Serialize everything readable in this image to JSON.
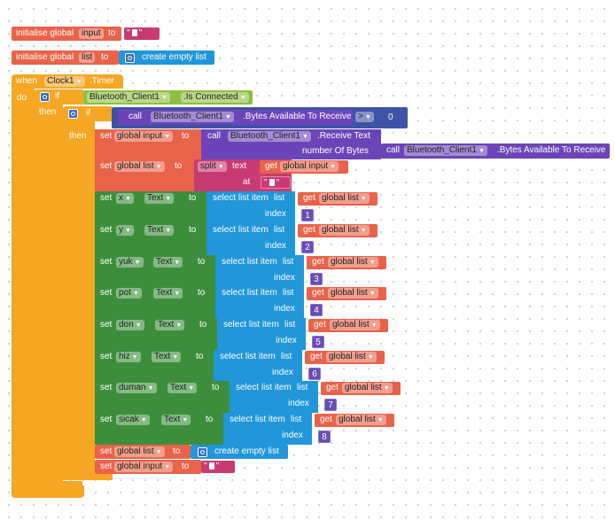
{
  "colors": {
    "variable": "#e8634a",
    "control": "#f5a622",
    "component_event": "#f5a622",
    "component_property_green": "#3d8e3c",
    "bluetooth_green": "#8dbf3f",
    "list_blue": "#2196d9",
    "method_purple": "#6d44b8",
    "text_pink": "#c83b72",
    "math_blue": "#3c53a6"
  },
  "globals": [
    {
      "label": "initialise global",
      "name": "input",
      "to": "to",
      "value_quote": "\""
    },
    {
      "label": "initialise global",
      "name": "list",
      "to": "to",
      "value_label": "create empty list"
    }
  ],
  "event": {
    "when": "when",
    "component": "Clock1",
    "event_name": ".Timer",
    "do": "do"
  },
  "if1": {
    "if": "if",
    "then": "then",
    "component": "Bluetooth_Client1",
    "property": ".Is Connected"
  },
  "if2": {
    "if": "if",
    "then": "then",
    "call": "call",
    "component": "Bluetooth_Client1",
    "method": ".Bytes Available To Receive",
    "op": ">",
    "value": "0"
  },
  "set_input": {
    "set": "set",
    "var": "global input",
    "to": "to",
    "call": "call",
    "component": "Bluetooth_Client1",
    "method": ".Receive Text",
    "arg_label": "number Of Bytes",
    "call2": "call",
    "component2": "Bluetooth_Client1",
    "method2": ".Bytes Available To Receive"
  },
  "set_list": {
    "set": "set",
    "var": "global list",
    "to": "to",
    "split": "split",
    "text": "text",
    "get": "get",
    "get_var": "global input",
    "at": "at",
    "sep_quote": "\""
  },
  "rows": [
    {
      "set": "set",
      "comp": "x",
      "prop": "Text",
      "to": "to",
      "select": "select list item",
      "list": "list",
      "get": "get",
      "var": "global list",
      "index_label": "index",
      "index": "1"
    },
    {
      "set": "set",
      "comp": "y",
      "prop": "Text",
      "to": "to",
      "select": "select list item",
      "list": "list",
      "get": "get",
      "var": "global list",
      "index_label": "index",
      "index": "2"
    },
    {
      "set": "set",
      "comp": "yuk",
      "prop": "Text",
      "to": "to",
      "select": "select list item",
      "list": "list",
      "get": "get",
      "var": "global list",
      "index_label": "index",
      "index": "3"
    },
    {
      "set": "set",
      "comp": "pot",
      "prop": "Text",
      "to": "to",
      "select": "select list item",
      "list": "list",
      "get": "get",
      "var": "global list",
      "index_label": "index",
      "index": "4"
    },
    {
      "set": "set",
      "comp": "don",
      "prop": "Text",
      "to": "to",
      "select": "select list item",
      "list": "list",
      "get": "get",
      "var": "global list",
      "index_label": "index",
      "index": "5"
    },
    {
      "set": "set",
      "comp": "hiz",
      "prop": "Text",
      "to": "to",
      "select": "select list item",
      "list": "list",
      "get": "get",
      "var": "global list",
      "index_label": "index",
      "index": "6"
    },
    {
      "set": "set",
      "comp": "duman",
      "prop": "Text",
      "to": "to",
      "select": "select list item",
      "list": "list",
      "get": "get",
      "var": "global list",
      "index_label": "index",
      "index": "7"
    },
    {
      "set": "set",
      "comp": "sicak",
      "prop": "Text",
      "to": "to",
      "select": "select list item",
      "list": "list",
      "get": "get",
      "var": "global list",
      "index_label": "index",
      "index": "8"
    }
  ],
  "reset_list": {
    "set": "set",
    "var": "global list",
    "to": "to",
    "value_label": "create empty list"
  },
  "reset_input": {
    "set": "set",
    "var": "global input",
    "to": "to",
    "value_quote": "\""
  }
}
